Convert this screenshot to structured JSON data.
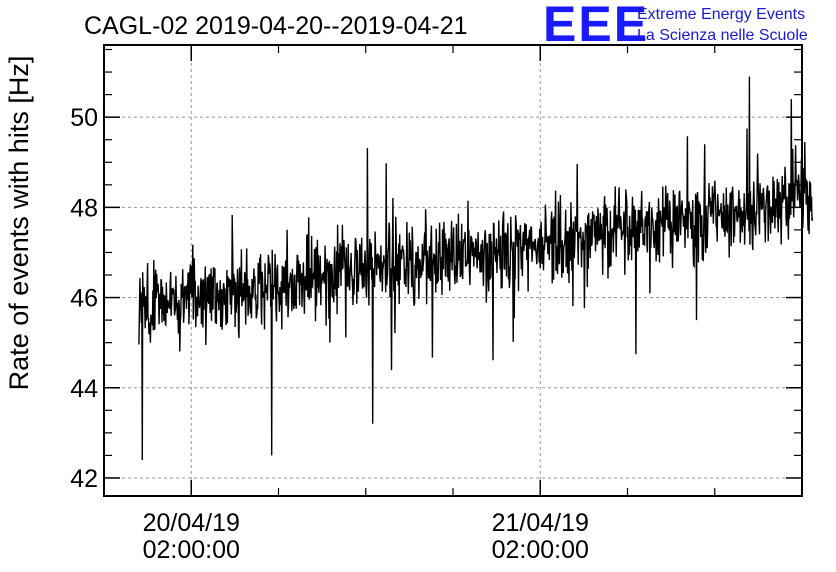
{
  "chart_data": {
    "type": "line",
    "title": "CAGL-02 2019-04-20--2019-04-21",
    "xlabel": "",
    "ylabel": "Rate of events with hits [Hz]",
    "ylim": [
      41.6,
      51.6
    ],
    "xlim": [
      -0.25,
      1.75
    ],
    "yticks": [
      42,
      44,
      46,
      48,
      50
    ],
    "xticks": [
      {
        "x": 0,
        "date": "20/04/19",
        "time": "02:00:00"
      },
      {
        "x": 1,
        "date": "21/04/19",
        "time": "02:00:00"
      }
    ],
    "grid": true,
    "x_data_range": [
      -0.15,
      1.78
    ],
    "trend": [
      [
        -0.15,
        45.8
      ],
      [
        0.25,
        46.3
      ],
      [
        0.5,
        46.6
      ],
      [
        1.0,
        47.2
      ],
      [
        1.5,
        47.8
      ],
      [
        1.78,
        48.2
      ]
    ],
    "notable_minima": [
      [
        -0.14,
        42.4
      ],
      [
        0.23,
        42.5
      ],
      [
        0.52,
        43.2
      ]
    ],
    "notable_maxima": [
      [
        1.6,
        50.9
      ],
      [
        1.72,
        50.4
      ]
    ]
  },
  "logo": {
    "letters": "EEE",
    "line1": "Extreme Energy Events",
    "line2": "La Scienza nelle Scuole",
    "color": "#1a1aff"
  }
}
